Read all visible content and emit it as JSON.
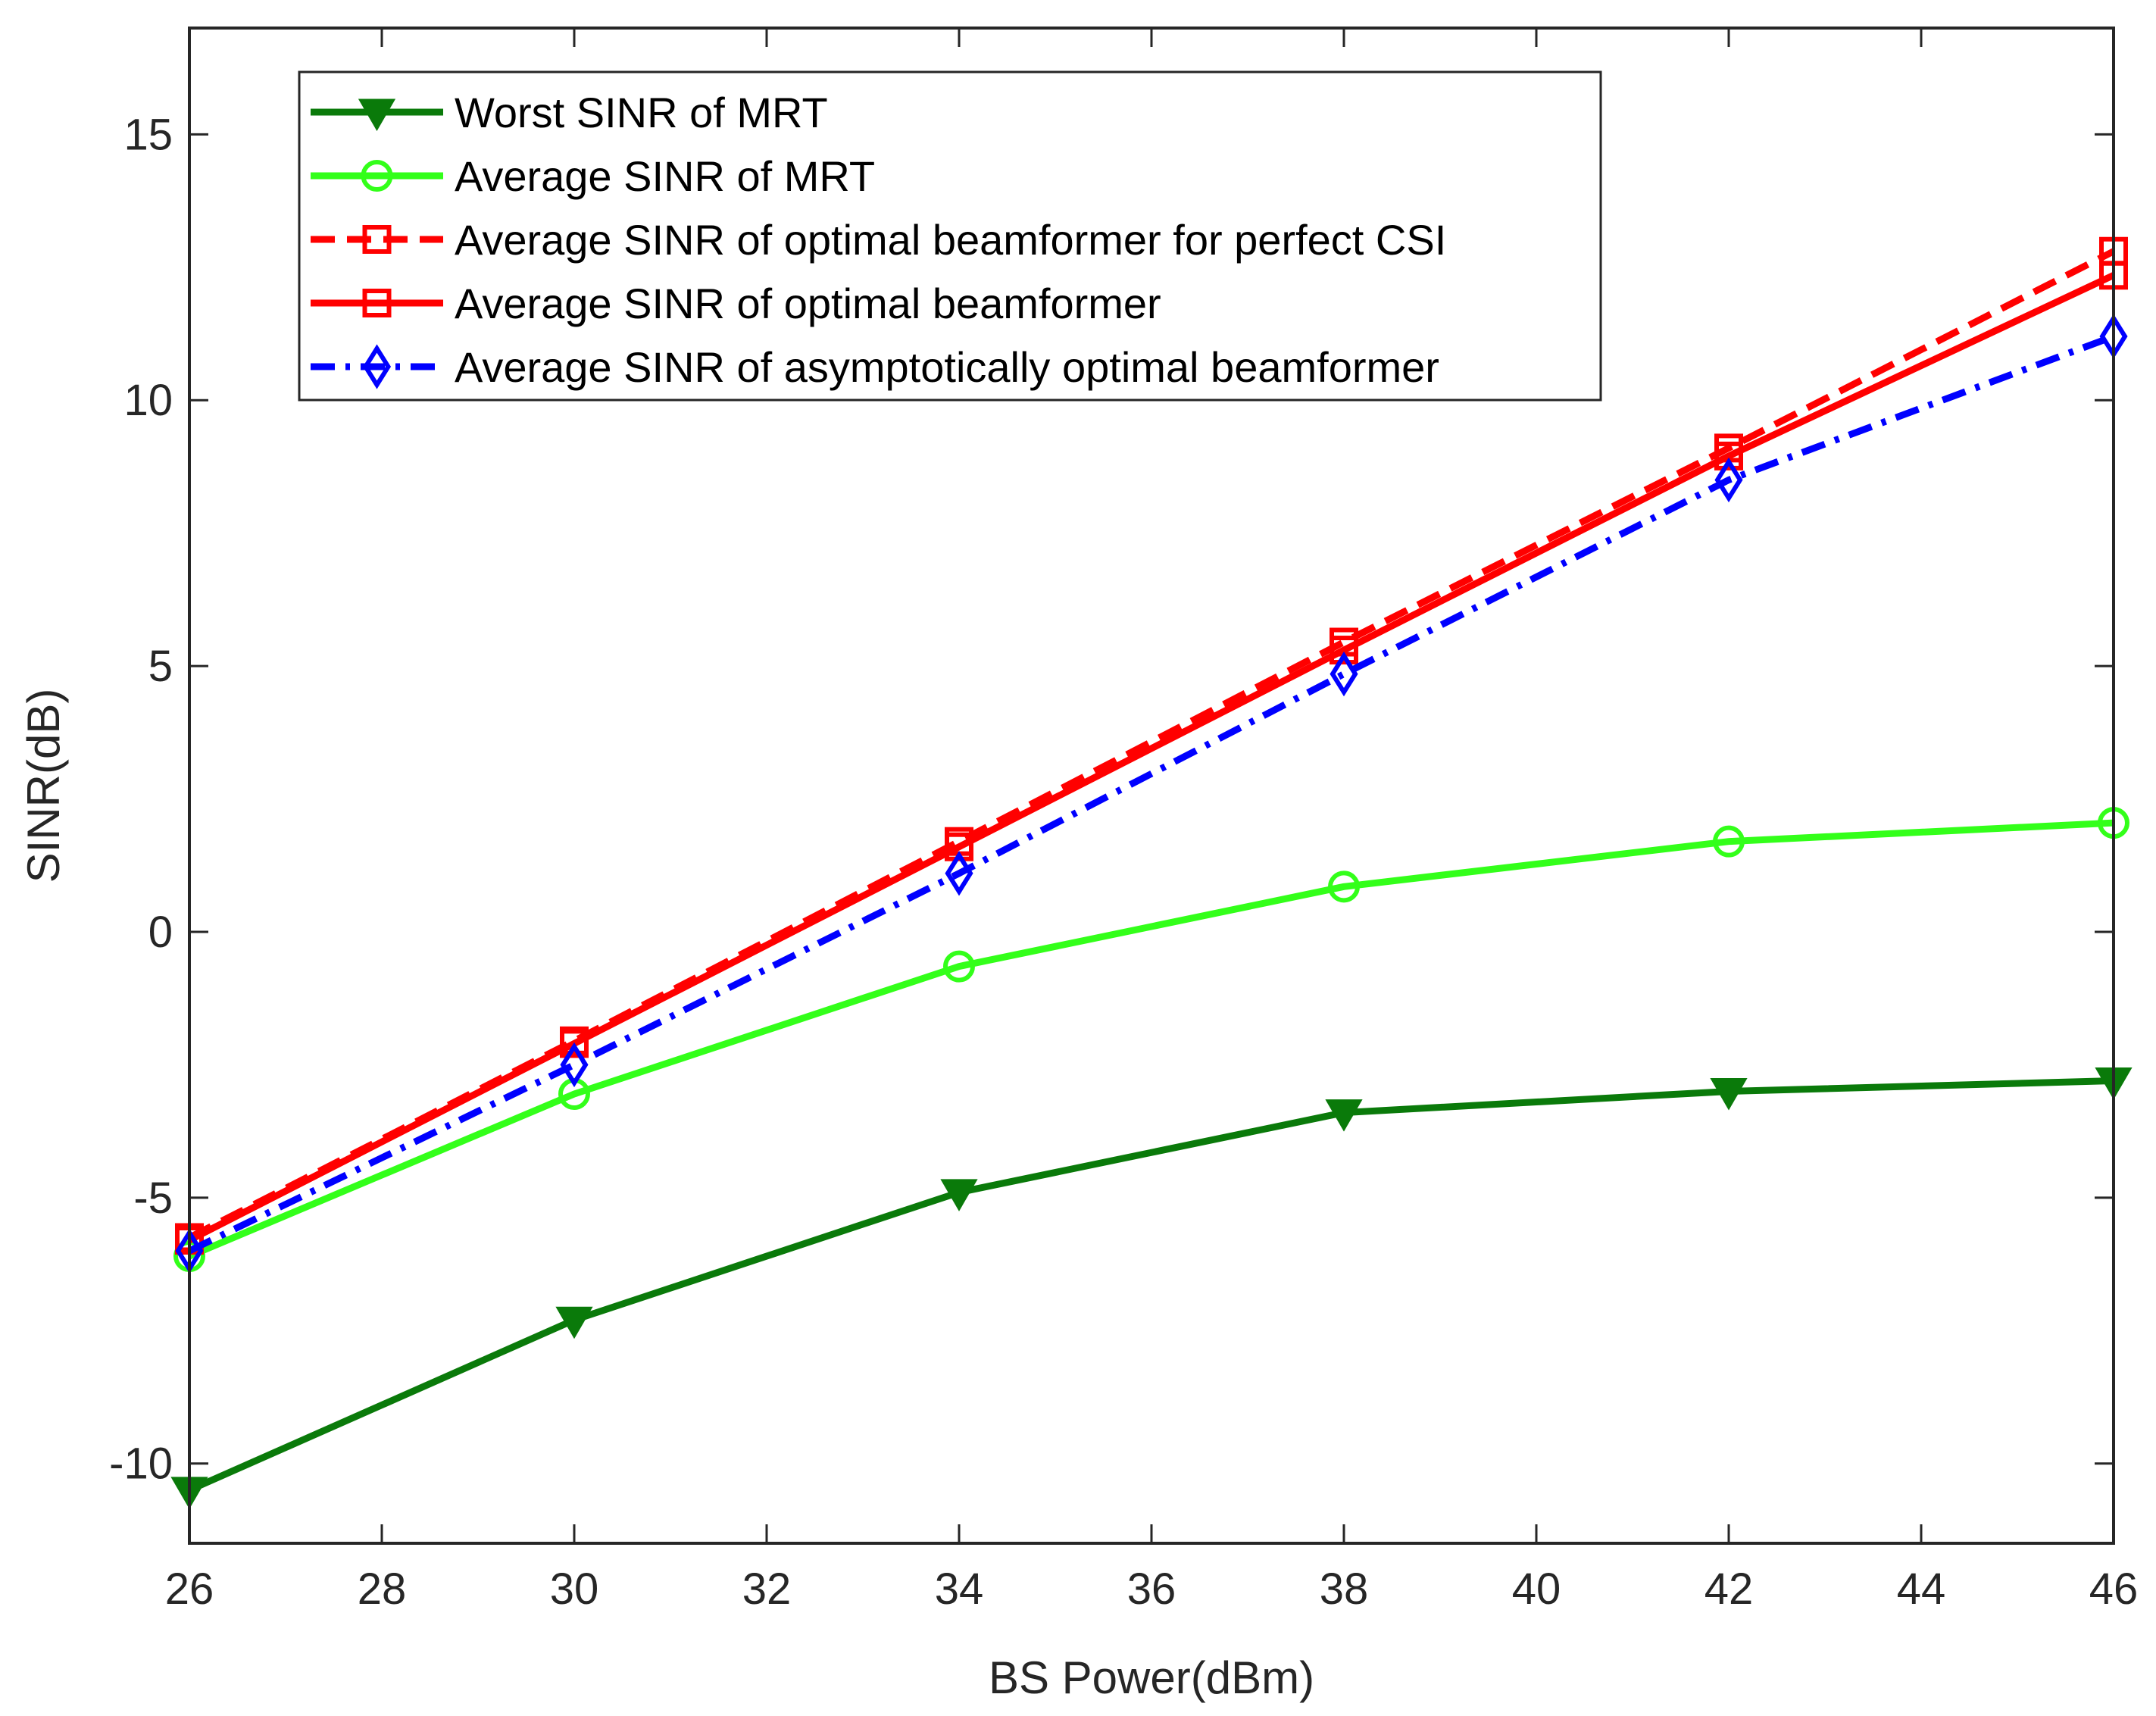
{
  "chart_data": {
    "type": "line",
    "title": "",
    "xlabel": "BS Power(dBm)",
    "ylabel": "SINR(dB)",
    "xlim": [
      26,
      46
    ],
    "ylim": [
      -11.5,
      17
    ],
    "xticks": [
      26,
      28,
      30,
      32,
      34,
      36,
      38,
      40,
      42,
      44,
      46
    ],
    "xtick_labels": [
      "26",
      "28",
      "30",
      "32",
      "34",
      "36",
      "38",
      "40",
      "42",
      "44",
      "46"
    ],
    "yticks": [
      -10,
      -5,
      0,
      5,
      10,
      15
    ],
    "ytick_labels": [
      "-10",
      "-5",
      "0",
      "5",
      "10",
      "15"
    ],
    "grid": false,
    "legend_position": "top-left",
    "x": [
      26,
      30,
      34,
      38,
      42,
      46
    ],
    "series": [
      {
        "name": "Worst SINR of MRT",
        "values": [
          -10.5,
          -7.3,
          -4.9,
          -3.4,
          -3.0,
          -2.8
        ],
        "color": "#0a7a0a",
        "dash": "solid",
        "marker": "triangle-down"
      },
      {
        "name": "Average SINR of MRT",
        "values": [
          -6.1,
          -3.05,
          -0.65,
          0.85,
          1.7,
          2.05
        ],
        "color": "#33ff1a",
        "dash": "solid",
        "marker": "circle"
      },
      {
        "name": "Average SINR of optimal beamformer for perfect CSI",
        "values": [
          -5.75,
          -2.05,
          1.7,
          5.45,
          9.1,
          12.8
        ],
        "color": "#ff0000",
        "dash": "dashed",
        "marker": "square"
      },
      {
        "name": "Average SINR of optimal beamformer",
        "values": [
          -5.8,
          -2.1,
          1.6,
          5.3,
          8.95,
          12.35
        ],
        "color": "#ff0000",
        "dash": "solid",
        "marker": "square"
      },
      {
        "name": "Average SINR of asymptotically optimal beamformer",
        "values": [
          -6.0,
          -2.5,
          1.1,
          4.85,
          8.5,
          11.2
        ],
        "color": "#0000ff",
        "dash": "dashdot",
        "marker": "diamond"
      }
    ]
  }
}
